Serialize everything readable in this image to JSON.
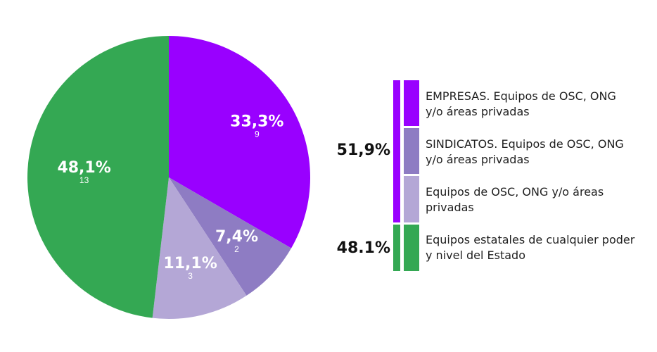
{
  "chart_data": {
    "type": "pie",
    "slices": [
      {
        "label": "EMPRESAS. Equipos de OSC, ONG y/o áreas privadas",
        "percent_label": "33,3%",
        "count": "9",
        "value": 9,
        "color": "#9900ff"
      },
      {
        "label": "SINDICATOS. Equipos de OSC, ONG y/o áreas privadas",
        "percent_label": "7,4%",
        "count": "2",
        "value": 2,
        "color": "#8e7cc3"
      },
      {
        "label": "Equipos de OSC, ONG y/o áreas privadas",
        "percent_label": "11,1%",
        "count": "3",
        "value": 3,
        "color": "#b4a7d6"
      },
      {
        "label": "Equipos estatales de cualquier poder y nivel del Estado",
        "percent_label": "48,1%",
        "count": "13",
        "value": 13,
        "color": "#34a853"
      }
    ],
    "groups": [
      {
        "label": "51,9%",
        "color": "#9900ff"
      },
      {
        "label": "48.1%",
        "color": "#34a853"
      }
    ]
  }
}
